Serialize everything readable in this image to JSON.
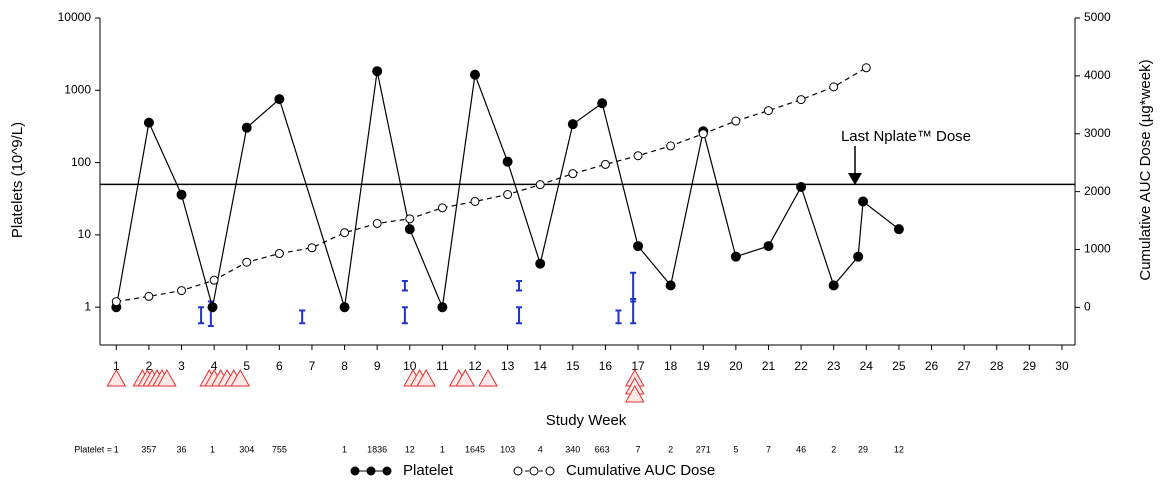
{
  "chart_data": {
    "type": "line",
    "y_axis_label": "Platelets (10^9/L)",
    "y2_axis_label": "Cumulative AUC Dose (µg*week)",
    "x_axis_label": "Study Week",
    "row_label": "Platelet =",
    "annotation": "Last Nplate™ Dose",
    "log_y": true,
    "xlim": [
      0.5,
      30.4
    ],
    "xticks": [
      1,
      2,
      3,
      4,
      5,
      6,
      7,
      8,
      9,
      10,
      11,
      12,
      13,
      14,
      15,
      16,
      17,
      18,
      19,
      20,
      21,
      22,
      23,
      24,
      25,
      26,
      27,
      28,
      29,
      30
    ],
    "ylim": [
      0.3,
      10000
    ],
    "yticks": [
      1,
      10,
      100,
      1000,
      10000
    ],
    "y2lim": [
      -650,
      5000
    ],
    "y2ticks": [
      0,
      1000,
      2000,
      3000,
      4000,
      5000
    ],
    "reference_line": 50,
    "series": [
      {
        "name": "Platelet",
        "color": "#000000",
        "x": [
          1,
          2,
          3,
          3.95,
          5,
          6,
          8,
          9,
          10,
          11,
          12,
          13,
          14,
          15,
          15.9,
          17,
          18,
          19,
          20,
          21,
          22,
          23,
          23.75,
          23.9,
          25
        ],
        "values": [
          1,
          357,
          36,
          1,
          304,
          755,
          1,
          1836,
          12,
          1,
          1645,
          103,
          4,
          340,
          663,
          7,
          2,
          271,
          5,
          7,
          46,
          2,
          5,
          29,
          12
        ],
        "value_labels": [
          "1",
          "357",
          "36",
          "1",
          "304",
          "755",
          "1",
          "1836",
          "12",
          "1",
          "1645",
          "103",
          "4",
          "340",
          "663",
          "7",
          "2",
          "271",
          "5",
          "7",
          "46",
          "2",
          null,
          "29",
          "12"
        ]
      },
      {
        "name": "Cumulative AUC Dose",
        "color": "#000000",
        "axis": "y2",
        "x": [
          1,
          2,
          3,
          4,
          5,
          6,
          7,
          8,
          9,
          10,
          11,
          12,
          13,
          14,
          15,
          16,
          17,
          18,
          19,
          20,
          21,
          22,
          23,
          24
        ],
        "values": [
          100,
          190,
          290,
          470,
          780,
          930,
          1030,
          1290,
          1450,
          1530,
          1720,
          1830,
          1950,
          2120,
          2310,
          2470,
          2620,
          2790,
          3000,
          3220,
          3400,
          3590,
          3810,
          4140
        ]
      }
    ],
    "event_bars": {
      "color": "#2233cc",
      "x": [
        3.6,
        3.9,
        6.7,
        9.85,
        9.85,
        13.35,
        13.35,
        16.4,
        16.85,
        16.85
      ],
      "low": [
        0.6,
        0.55,
        0.6,
        0.6,
        1.7,
        0.6,
        1.7,
        0.6,
        0.6,
        1.2
      ],
      "high": [
        1,
        1.2,
        0.9,
        1,
        2.3,
        1,
        2.3,
        0.9,
        1.3,
        3
      ]
    },
    "event_markers": {
      "color": "#e03030",
      "x": [
        1,
        1.8,
        1.95,
        2.1,
        2.25,
        2.4,
        2.55,
        3.85,
        4,
        4.2,
        4.4,
        4.6,
        4.8,
        10.1,
        10.3,
        10.5,
        11.5,
        11.7,
        12.4,
        16.9,
        16.9,
        16.9
      ]
    }
  }
}
